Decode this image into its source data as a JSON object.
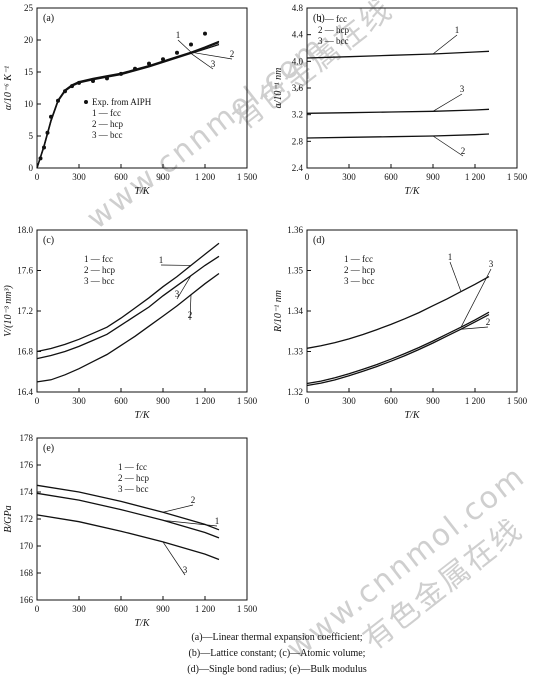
{
  "watermark": {
    "cn": "有色金属在线",
    "url": "www.cnnmol.com"
  },
  "captions": [
    "(a)—Linear thermal expansion coefficient;",
    "(b)—Lattice constant; (c)—Atomic volume;",
    "(d)—Single bond radius; (e)—Bulk modulus"
  ],
  "chart_data": [
    {
      "id": "a",
      "type": "line",
      "panel_label": "(a)",
      "ylabel": "α/10⁻⁶ K⁻¹",
      "xlabel": "T/K",
      "xlim": [
        0,
        1500
      ],
      "ylim": [
        0,
        25
      ],
      "xticks": [
        "0",
        "300",
        "600",
        "900",
        "1 200",
        "1 500"
      ],
      "yticks": [
        "0",
        "5",
        "10",
        "15",
        "20",
        "25"
      ],
      "legend": [
        "Exp. from AIPH",
        "1 — fcc",
        "2 — hcp",
        "3 — bcc"
      ],
      "series": [
        {
          "name": "fcc",
          "label": "1",
          "x": [
            0,
            50,
            100,
            150,
            200,
            250,
            300,
            400,
            500,
            600,
            700,
            800,
            900,
            1000,
            1100,
            1200,
            1300
          ],
          "y": [
            0,
            3.5,
            7.5,
            10.6,
            12.2,
            13.0,
            13.5,
            14.0,
            14.4,
            14.8,
            15.4,
            16.0,
            16.7,
            17.4,
            18.1,
            18.8,
            19.6
          ]
        },
        {
          "name": "hcp",
          "label": "2",
          "x": [
            0,
            50,
            100,
            150,
            200,
            250,
            300,
            400,
            500,
            600,
            700,
            800,
            900,
            1000,
            1100,
            1200,
            1300
          ],
          "y": [
            0,
            3.4,
            7.4,
            10.5,
            12.1,
            12.9,
            13.4,
            13.9,
            14.3,
            14.7,
            15.3,
            15.9,
            16.6,
            17.3,
            18.1,
            18.9,
            19.8
          ]
        },
        {
          "name": "bcc",
          "label": "3",
          "x": [
            0,
            50,
            100,
            150,
            200,
            250,
            300,
            400,
            500,
            600,
            700,
            800,
            900,
            1000,
            1100,
            1200,
            1300
          ],
          "y": [
            0,
            3.3,
            7.3,
            10.4,
            12.0,
            12.8,
            13.3,
            13.8,
            14.2,
            14.6,
            15.2,
            15.8,
            16.5,
            17.2,
            17.9,
            18.6,
            19.3
          ]
        },
        {
          "name": "Exp. from AIPH",
          "marker": "dot",
          "x": [
            25,
            50,
            75,
            100,
            150,
            200,
            250,
            300,
            400,
            500,
            600,
            700,
            800,
            900,
            1000,
            1100,
            1200
          ],
          "y": [
            1.5,
            3.2,
            5.5,
            8.0,
            10.5,
            12.0,
            12.8,
            13.3,
            13.6,
            14.0,
            14.7,
            15.5,
            16.3,
            17.0,
            18.0,
            19.3,
            21.0
          ]
        }
      ]
    },
    {
      "id": "b",
      "type": "line",
      "panel_label": "(b)",
      "ylabel": "a/10⁻¹ nm",
      "xlabel": "T/K",
      "xlim": [
        0,
        1500
      ],
      "ylim": [
        2.4,
        4.8
      ],
      "xticks": [
        "0",
        "300",
        "600",
        "900",
        "1 200",
        "1 500"
      ],
      "yticks": [
        "2.4",
        "2.8",
        "3.2",
        "3.6",
        "4.0",
        "4.4",
        "4.8"
      ],
      "legend": [
        "1 — fcc",
        "2 — hcp",
        "3 — bcc"
      ],
      "series": [
        {
          "name": "fcc",
          "label": "1",
          "x": [
            0,
            300,
            600,
            900,
            1200,
            1300
          ],
          "y": [
            4.05,
            4.07,
            4.09,
            4.11,
            4.14,
            4.15
          ]
        },
        {
          "name": "hcp",
          "label": "2",
          "x": [
            0,
            300,
            600,
            900,
            1200,
            1300
          ],
          "y": [
            2.85,
            2.86,
            2.87,
            2.88,
            2.9,
            2.91
          ]
        },
        {
          "name": "bcc",
          "label": "3",
          "x": [
            0,
            300,
            600,
            900,
            1200,
            1300
          ],
          "y": [
            3.22,
            3.23,
            3.24,
            3.25,
            3.27,
            3.28
          ]
        }
      ]
    },
    {
      "id": "c",
      "type": "line",
      "panel_label": "(c)",
      "ylabel": "V/(10⁻³ nm³)",
      "xlabel": "T/K",
      "xlim": [
        0,
        1500
      ],
      "ylim": [
        16.4,
        18.0
      ],
      "xticks": [
        "0",
        "300",
        "600",
        "900",
        "1 200",
        "1 500"
      ],
      "yticks": [
        "16.4",
        "16.8",
        "17.2",
        "17.6",
        "18.0"
      ],
      "legend": [
        "1 — fcc",
        "2 — hcp",
        "3 — bcc"
      ],
      "series": [
        {
          "name": "fcc",
          "label": "1",
          "x": [
            0,
            100,
            200,
            300,
            400,
            500,
            600,
            700,
            800,
            900,
            1000,
            1100,
            1200,
            1300
          ],
          "y": [
            16.8,
            16.83,
            16.87,
            16.92,
            16.98,
            17.04,
            17.13,
            17.23,
            17.33,
            17.44,
            17.54,
            17.65,
            17.76,
            17.87
          ]
        },
        {
          "name": "hcp",
          "label": "2",
          "x": [
            0,
            100,
            200,
            300,
            400,
            500,
            600,
            700,
            800,
            900,
            1000,
            1100,
            1200,
            1300
          ],
          "y": [
            16.5,
            16.52,
            16.57,
            16.63,
            16.7,
            16.77,
            16.86,
            16.95,
            17.05,
            17.15,
            17.25,
            17.36,
            17.47,
            17.57
          ]
        },
        {
          "name": "bcc",
          "label": "3",
          "x": [
            0,
            100,
            200,
            300,
            400,
            500,
            600,
            700,
            800,
            900,
            1000,
            1100,
            1200,
            1300
          ],
          "y": [
            16.73,
            16.76,
            16.8,
            16.85,
            16.91,
            16.97,
            17.06,
            17.15,
            17.24,
            17.35,
            17.45,
            17.55,
            17.65,
            17.74
          ]
        }
      ]
    },
    {
      "id": "d",
      "type": "line",
      "panel_label": "(d)",
      "ylabel": "R/10⁻¹ nm",
      "xlabel": "T/K",
      "xlim": [
        0,
        1500
      ],
      "ylim": [
        1.32,
        1.36
      ],
      "xticks": [
        "0",
        "300",
        "600",
        "900",
        "1 200",
        "1 500"
      ],
      "yticks": [
        "1.32",
        "1.33",
        "1.34",
        "1.35",
        "1.36"
      ],
      "legend": [
        "1 — fcc",
        "2 — hcp",
        "3 — bcc"
      ],
      "series": [
        {
          "name": "fcc",
          "label": "1",
          "x": [
            0,
            100,
            200,
            300,
            400,
            500,
            600,
            700,
            800,
            900,
            1000,
            1100,
            1200,
            1300
          ],
          "y": [
            1.3308,
            1.3314,
            1.3322,
            1.3331,
            1.3342,
            1.3354,
            1.3367,
            1.3381,
            1.3396,
            1.3413,
            1.343,
            1.3448,
            1.3466,
            1.3485
          ]
        },
        {
          "name": "hcp",
          "label": "2",
          "x": [
            0,
            100,
            200,
            300,
            400,
            500,
            600,
            700,
            800,
            900,
            1000,
            1100,
            1200,
            1300
          ],
          "y": [
            1.3216,
            1.3222,
            1.323,
            1.324,
            1.3251,
            1.3263,
            1.3276,
            1.329,
            1.3305,
            1.3321,
            1.3338,
            1.3355,
            1.3373,
            1.3391
          ]
        },
        {
          "name": "bcc",
          "label": "3",
          "x": [
            0,
            100,
            200,
            300,
            400,
            500,
            600,
            700,
            800,
            900,
            1000,
            1100,
            1200,
            1300
          ],
          "y": [
            1.3221,
            1.3227,
            1.3235,
            1.3245,
            1.3256,
            1.3268,
            1.3281,
            1.3295,
            1.331,
            1.3326,
            1.3343,
            1.336,
            1.3378,
            1.3397
          ]
        }
      ]
    },
    {
      "id": "e",
      "type": "line",
      "panel_label": "(e)",
      "ylabel": "B/GPa",
      "xlabel": "T/K",
      "xlim": [
        0,
        1500
      ],
      "ylim": [
        166,
        178
      ],
      "xticks": [
        "0",
        "300",
        "600",
        "900",
        "1 200",
        "1 500"
      ],
      "yticks": [
        "166",
        "168",
        "170",
        "172",
        "174",
        "176",
        "178"
      ],
      "legend": [
        "1 — fcc",
        "2 — hcp",
        "3 — bcc"
      ],
      "series": [
        {
          "name": "fcc",
          "label": "1",
          "x": [
            0,
            300,
            600,
            900,
            1200,
            1300
          ],
          "y": [
            173.9,
            173.4,
            172.7,
            171.9,
            171.0,
            170.6
          ]
        },
        {
          "name": "hcp",
          "label": "2",
          "x": [
            0,
            300,
            600,
            900,
            1200,
            1300
          ],
          "y": [
            174.5,
            174.0,
            173.3,
            172.5,
            171.6,
            171.2
          ]
        },
        {
          "name": "bcc",
          "label": "3",
          "x": [
            0,
            300,
            600,
            900,
            1200,
            1300
          ],
          "y": [
            172.3,
            171.8,
            171.1,
            170.3,
            169.4,
            169.0
          ]
        }
      ]
    }
  ]
}
